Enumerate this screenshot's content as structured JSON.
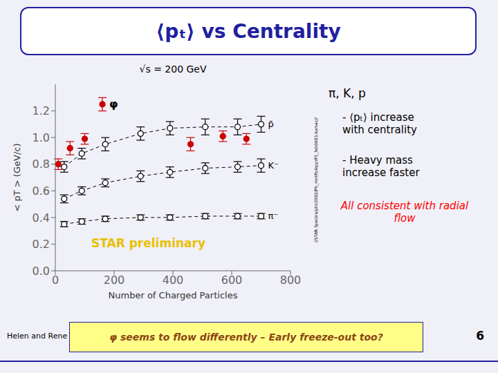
{
  "chart_data": {
    "type": "scatter",
    "title": "⟨pₜ⟩ vs Centrality",
    "subtitle": "√s = 200 GeV",
    "xlabel": "Number of Charged Particles",
    "ylabel": "< pT > (GeV/c)",
    "xlim": [
      0,
      800
    ],
    "ylim": [
      0,
      1.4
    ],
    "xticks": [
      0,
      200,
      400,
      600,
      800
    ],
    "yticks": [
      {
        "value": 0,
        "label": "0.0"
      },
      0.2,
      0.4,
      0.6,
      0.8,
      {
        "value": 1.0,
        "label": "1.0"
      },
      1.2
    ],
    "grid": false,
    "series": [
      {
        "name": "φ",
        "type": "scatter",
        "color": "#cc0000",
        "marker": "filled",
        "x": [
          10,
          50,
          100,
          160,
          460,
          570,
          650
        ],
        "values": [
          0.8,
          0.92,
          0.99,
          1.25,
          0.95,
          1.01,
          0.99
        ],
        "yerr": [
          0.04,
          0.05,
          0.04,
          0.05,
          0.05,
          0.04,
          0.04
        ]
      },
      {
        "name": "p̄",
        "type": "line",
        "color": "black",
        "marker": "open",
        "line_style": "dashed",
        "x": [
          30,
          90,
          170,
          290,
          390,
          510,
          620,
          700
        ],
        "values": [
          0.78,
          0.88,
          0.95,
          1.03,
          1.07,
          1.08,
          1.08,
          1.1
        ],
        "yerr": [
          0.04,
          0.04,
          0.05,
          0.05,
          0.05,
          0.06,
          0.06,
          0.06
        ]
      },
      {
        "name": "K⁻",
        "type": "line",
        "color": "black",
        "marker": "open",
        "line_style": "dashed",
        "x": [
          30,
          90,
          170,
          290,
          390,
          510,
          620,
          700
        ],
        "values": [
          0.54,
          0.6,
          0.66,
          0.71,
          0.74,
          0.77,
          0.78,
          0.79
        ],
        "yerr": [
          0.03,
          0.03,
          0.03,
          0.04,
          0.04,
          0.04,
          0.04,
          0.05
        ]
      },
      {
        "name": "π⁻",
        "type": "line",
        "color": "black",
        "marker": "open",
        "line_style": "dashed",
        "x": [
          30,
          90,
          170,
          290,
          390,
          510,
          620,
          700
        ],
        "values": [
          0.35,
          0.37,
          0.39,
          0.4,
          0.4,
          0.41,
          0.41,
          0.41
        ],
        "yerr": [
          0.02,
          0.02,
          0.02,
          0.02,
          0.02,
          0.02,
          0.02,
          0.02
        ]
      }
    ],
    "annotations": [
      "STAR preliminary",
      "//STAR Spectra/phi/2002/Ph_mntPpikpprP1_feb0603.kumac//",
      "π, K, p",
      "- ⟨pₜ⟩ increase\nwith centrality",
      "- Heavy mass\nincrease faster",
      "All consistent with radial\nflow",
      "φ seems to flow differently – Early freeze-out too?",
      "Helen and Rene",
      "6"
    ]
  }
}
